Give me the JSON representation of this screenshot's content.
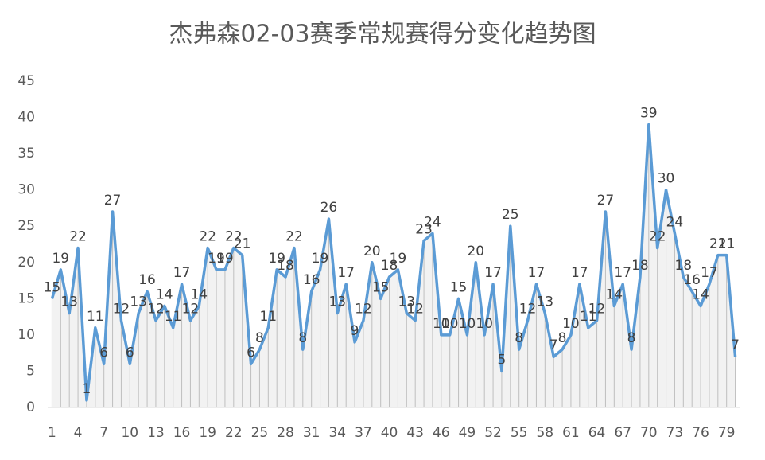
{
  "chart_data": {
    "type": "line",
    "title": "杰弗森02-03赛季常规赛得分变化趋势图",
    "x": [
      1,
      2,
      3,
      4,
      5,
      6,
      7,
      8,
      9,
      10,
      11,
      12,
      13,
      14,
      15,
      16,
      17,
      18,
      19,
      20,
      21,
      22,
      23,
      24,
      25,
      26,
      27,
      28,
      29,
      30,
      31,
      32,
      33,
      34,
      35,
      36,
      37,
      38,
      39,
      40,
      41,
      42,
      43,
      44,
      45,
      46,
      47,
      48,
      49,
      50,
      51,
      52,
      53,
      54,
      55,
      56,
      57,
      58,
      59,
      60,
      61,
      62,
      63,
      64,
      65,
      66,
      67,
      68,
      69,
      70,
      71,
      72,
      73,
      74,
      75,
      76,
      77,
      78,
      79,
      80
    ],
    "values": [
      15,
      19,
      13,
      22,
      1,
      11,
      6,
      27,
      12,
      6,
      13,
      16,
      12,
      14,
      11,
      17,
      12,
      14,
      22,
      19,
      19,
      22,
      21,
      6,
      8,
      11,
      19,
      18,
      22,
      8,
      16,
      19,
      26,
      13,
      17,
      9,
      12,
      20,
      15,
      18,
      19,
      13,
      12,
      23,
      24,
      10,
      10,
      15,
      10,
      20,
      10,
      17,
      5,
      25,
      8,
      12,
      17,
      13,
      7,
      8,
      10,
      17,
      11,
      12,
      27,
      14,
      17,
      8,
      18,
      39,
      22,
      30,
      24,
      18,
      16,
      14,
      17,
      21,
      21,
      7
    ],
    "color": "#5b9bd5",
    "xlim": [
      0.5,
      80.5
    ],
    "xticks": [
      1,
      4,
      7,
      10,
      13,
      16,
      19,
      22,
      25,
      28,
      31,
      34,
      37,
      40,
      43,
      46,
      49,
      52,
      55,
      58,
      61,
      64,
      67,
      70,
      73,
      76,
      79
    ],
    "ylim": [
      0,
      45
    ],
    "yticks": [
      0,
      5,
      10,
      15,
      20,
      25,
      30,
      35,
      40,
      45
    ]
  }
}
